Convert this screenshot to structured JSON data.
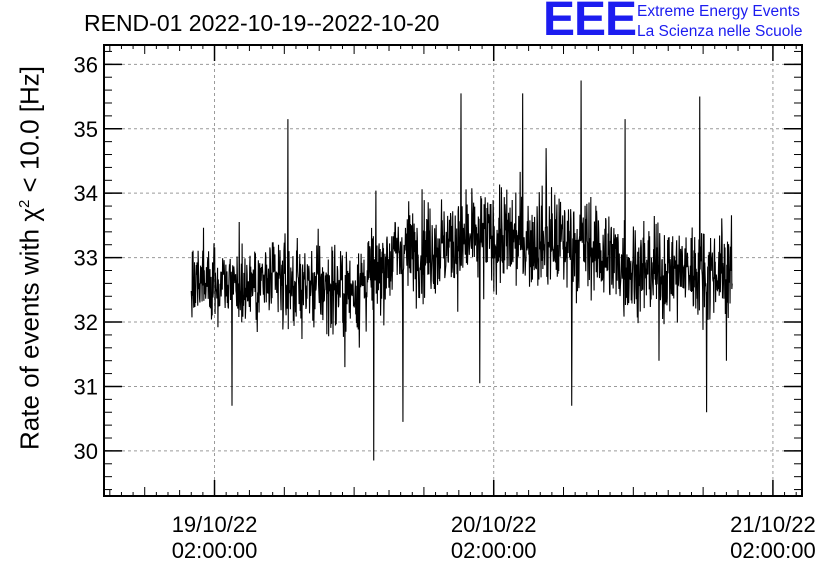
{
  "chart_data": {
    "type": "line",
    "title": "REND-01 2022-10-19--2022-10-20",
    "ylabel_prefix": "Rate of events with ",
    "ylabel_symbol": "χ",
    "ylabel_exp": "2",
    "ylabel_suffix": " < 10.0 [Hz]",
    "xlabel": "",
    "ylim": [
      29.3,
      36.3
    ],
    "yticks": [
      30,
      31,
      32,
      33,
      34,
      35,
      36
    ],
    "xlim_hours": [
      -9.5,
      50.5
    ],
    "x_ticks": [
      {
        "hour": 0,
        "date": "19/10/22",
        "time": "02:00:00"
      },
      {
        "hour": 24,
        "date": "20/10/22",
        "time": "02:00:00"
      },
      {
        "hour": 48,
        "date": "21/10/22",
        "time": "02:00:00"
      }
    ],
    "series_start_hour": -2.0,
    "series_end_hour": 44.5,
    "series_color": "#000000",
    "grid": true,
    "trend": [
      {
        "hour": -2,
        "mean": 32.6,
        "spread": 0.55
      },
      {
        "hour": 6,
        "mean": 32.6,
        "spread": 0.6
      },
      {
        "hour": 12,
        "mean": 32.5,
        "spread": 0.65
      },
      {
        "hour": 16,
        "mean": 33.1,
        "spread": 0.65
      },
      {
        "hour": 24,
        "mean": 33.3,
        "spread": 0.7
      },
      {
        "hour": 32,
        "mean": 33.2,
        "spread": 0.7
      },
      {
        "hour": 36,
        "mean": 32.8,
        "spread": 0.65
      },
      {
        "hour": 44.5,
        "mean": 32.8,
        "spread": 0.65
      }
    ],
    "extremes": [
      {
        "hour": 6.3,
        "value": 35.15
      },
      {
        "hour": 13.7,
        "value": 29.85
      },
      {
        "hour": 16.2,
        "value": 30.45
      },
      {
        "hour": 21.2,
        "value": 35.55
      },
      {
        "hour": 22.8,
        "value": 31.05
      },
      {
        "hour": 26.5,
        "value": 35.55
      },
      {
        "hour": 30.7,
        "value": 30.7
      },
      {
        "hour": 31.5,
        "value": 35.75
      },
      {
        "hour": 35.3,
        "value": 35.15
      },
      {
        "hour": 38.2,
        "value": 31.4
      },
      {
        "hour": 41.7,
        "value": 35.5
      },
      {
        "hour": 42.3,
        "value": 30.6
      },
      {
        "hour": 1.5,
        "value": 30.7
      },
      {
        "hour": 11.2,
        "value": 31.3
      },
      {
        "hour": 28.5,
        "value": 34.7
      },
      {
        "hour": 44.0,
        "value": 31.4
      }
    ]
  },
  "logo": {
    "text": "EEE",
    "line1": "Extreme Energy Events",
    "line2": "La Scienza nelle Scuole",
    "color": "#1c1cf0"
  }
}
